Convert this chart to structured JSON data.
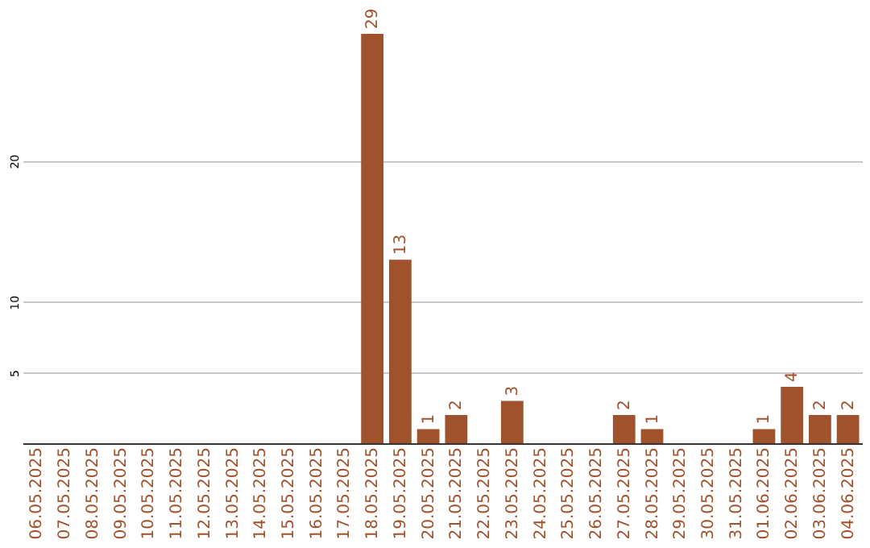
{
  "chart_data": {
    "type": "bar",
    "categories": [
      "06.05.2025",
      "07.05.2025",
      "08.05.2025",
      "09.05.2025",
      "10.05.2025",
      "11.05.2025",
      "12.05.2025",
      "13.05.2025",
      "14.05.2025",
      "15.05.2025",
      "16.05.2025",
      "17.05.2025",
      "18.05.2025",
      "19.05.2025",
      "20.05.2025",
      "21.05.2025",
      "22.05.2025",
      "23.05.2025",
      "24.05.2025",
      "25.05.2025",
      "26.05.2025",
      "27.05.2025",
      "28.05.2025",
      "29.05.2025",
      "30.05.2025",
      "31.05.2025",
      "01.06.2025",
      "02.06.2025",
      "03.06.2025",
      "04.06.2025"
    ],
    "values": [
      0,
      0,
      0,
      0,
      0,
      0,
      0,
      0,
      0,
      0,
      0,
      0,
      29,
      13,
      1,
      2,
      0,
      3,
      0,
      0,
      0,
      2,
      1,
      0,
      0,
      0,
      1,
      4,
      2,
      2
    ],
    "value_labels": [
      null,
      null,
      null,
      null,
      null,
      null,
      null,
      null,
      null,
      null,
      null,
      null,
      "29",
      "13",
      "1",
      "2",
      null,
      "3",
      null,
      null,
      null,
      "2",
      "1",
      null,
      null,
      null,
      "1",
      "4",
      "2",
      "2"
    ],
    "color": "#a0522d",
    "ylim": [
      0,
      29
    ],
    "yticks": [
      5,
      10,
      20
    ],
    "grid": "y"
  }
}
